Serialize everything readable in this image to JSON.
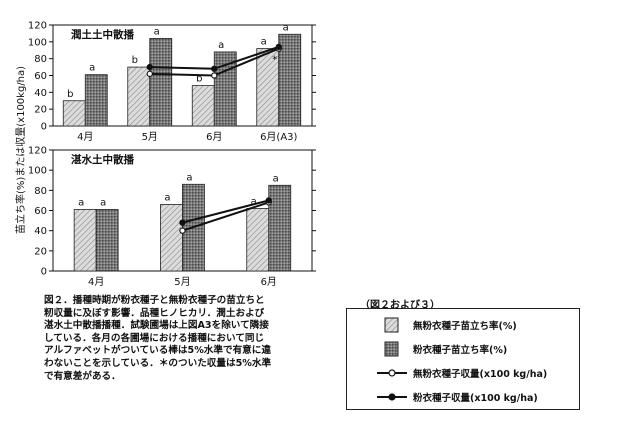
{
  "chart_data": [
    {
      "type": "bar",
      "panel_title": "潤土土中散播",
      "categories": [
        "4月",
        "5月",
        "6月",
        "6月(A3)"
      ],
      "ylim": [
        0,
        120
      ],
      "yticks": [
        0,
        20,
        40,
        60,
        80,
        100,
        120
      ],
      "series": [
        {
          "name": "無粉衣種子苗立ち率(%)",
          "values": [
            30,
            70,
            48,
            92
          ],
          "letters": [
            "b",
            "b",
            "b",
            "a"
          ]
        },
        {
          "name": "粉衣種子苗立ち率(%)",
          "values": [
            61,
            104,
            88,
            109
          ],
          "letters": [
            "a",
            "a",
            "a",
            "a"
          ]
        }
      ],
      "lines": [
        {
          "name": "無粉衣種子収量(x100 kg/ha)",
          "x_index": [
            1,
            2,
            3
          ],
          "values": [
            62,
            60,
            92
          ]
        },
        {
          "name": "粉衣種子収量(x100 kg/ha)",
          "x_index": [
            1,
            2,
            3
          ],
          "values": [
            70,
            68,
            94
          ]
        }
      ],
      "annotations": [
        "*"
      ]
    },
    {
      "type": "bar",
      "panel_title": "湛水土中散播",
      "categories": [
        "4月",
        "5月",
        "6月"
      ],
      "ylim": [
        0,
        120
      ],
      "yticks": [
        0,
        20,
        40,
        60,
        80,
        100,
        120
      ],
      "series": [
        {
          "name": "無粉衣種子苗立ち率(%)",
          "values": [
            61,
            66,
            62
          ],
          "letters": [
            "a",
            "a",
            "a"
          ]
        },
        {
          "name": "粉衣種子苗立ち率(%)",
          "values": [
            61,
            86,
            85
          ],
          "letters": [
            "a",
            "a",
            "a"
          ]
        }
      ],
      "lines": [
        {
          "name": "無粉衣種子収量(x100 kg/ha)",
          "x_index": [
            1,
            2
          ],
          "values": [
            40,
            68
          ]
        },
        {
          "name": "粉衣種子収量(x100 kg/ha)",
          "x_index": [
            1,
            2
          ],
          "values": [
            48,
            70
          ]
        }
      ]
    }
  ],
  "ylabel": "苗立ち率(%)または収量(x100kg/ha)",
  "caption": "図２．播種時期が粉衣種子と無粉衣種子の苗立ちと\n籾収量に及ぼす影響．品種ヒノヒカリ．潤土および\n湛水土中散播播種．試験圃場は上図A3を除いて隣接\nしている．各月の各圃場における播種において同じ\nアルファベットがついている棒は5%水準で有意に違\nわないことを示している．＊のついた収量は5%水準\nで有意差がある．",
  "legend": {
    "title": "（図２および３）",
    "items": [
      {
        "label": "無粉衣種子苗立ち率(%)",
        "kind": "bar-light"
      },
      {
        "label": "粉衣種子苗立ち率(%)",
        "kind": "bar-dark"
      },
      {
        "label": "無粉衣種子収量(x100 kg/ha)",
        "kind": "line-open"
      },
      {
        "label": "粉衣種子収量(x100 kg/ha)",
        "kind": "line-filled"
      }
    ]
  }
}
